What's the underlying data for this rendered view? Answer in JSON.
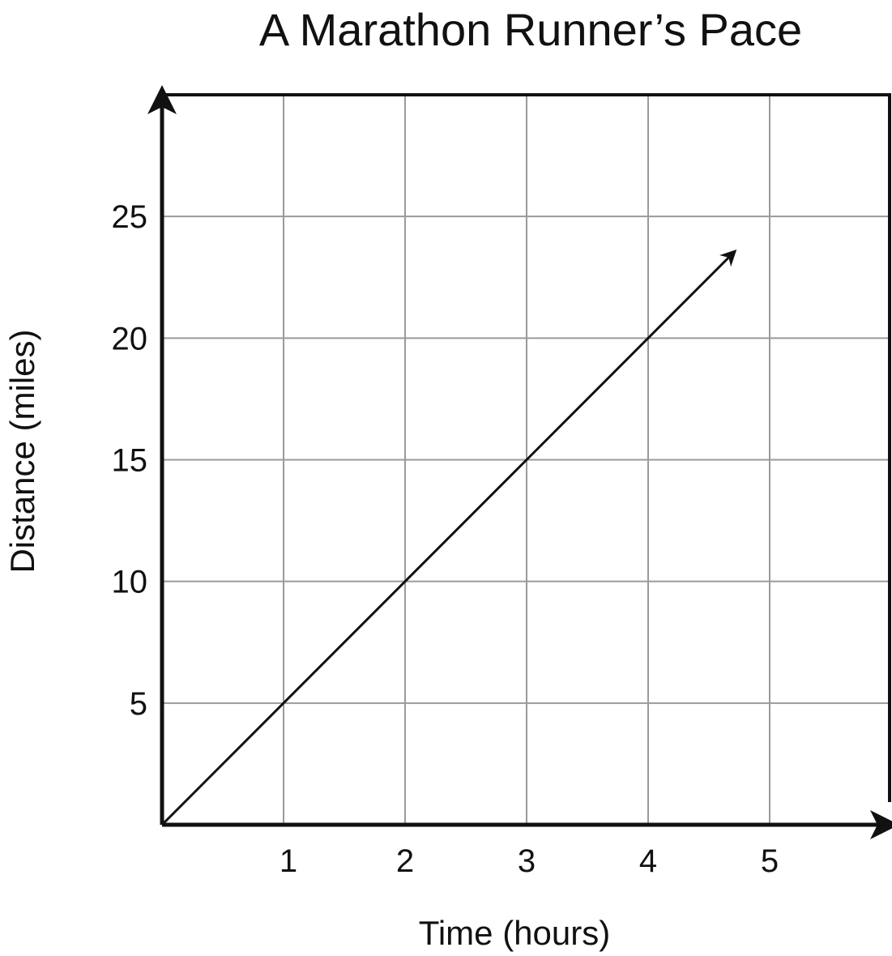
{
  "chart_data": {
    "type": "line",
    "title": "A Marathon Runner’s Pace",
    "xlabel": "Time (hours)",
    "ylabel": "Distance (miles)",
    "x_ticks": [
      "1",
      "2",
      "3",
      "4",
      "5"
    ],
    "y_ticks": [
      "5",
      "10",
      "15",
      "20",
      "25"
    ],
    "xlim": [
      0,
      6
    ],
    "ylim": [
      0,
      30
    ],
    "grid": true,
    "legend": "none",
    "series": [
      {
        "x": [
          0,
          1,
          2,
          3,
          4,
          4.7
        ],
        "y": [
          0,
          5,
          10,
          15,
          20,
          23.5
        ],
        "end_arrow": true
      }
    ],
    "colors": {
      "line": "#111111",
      "axes": "#111111",
      "grid": "#9a9a9a"
    }
  }
}
